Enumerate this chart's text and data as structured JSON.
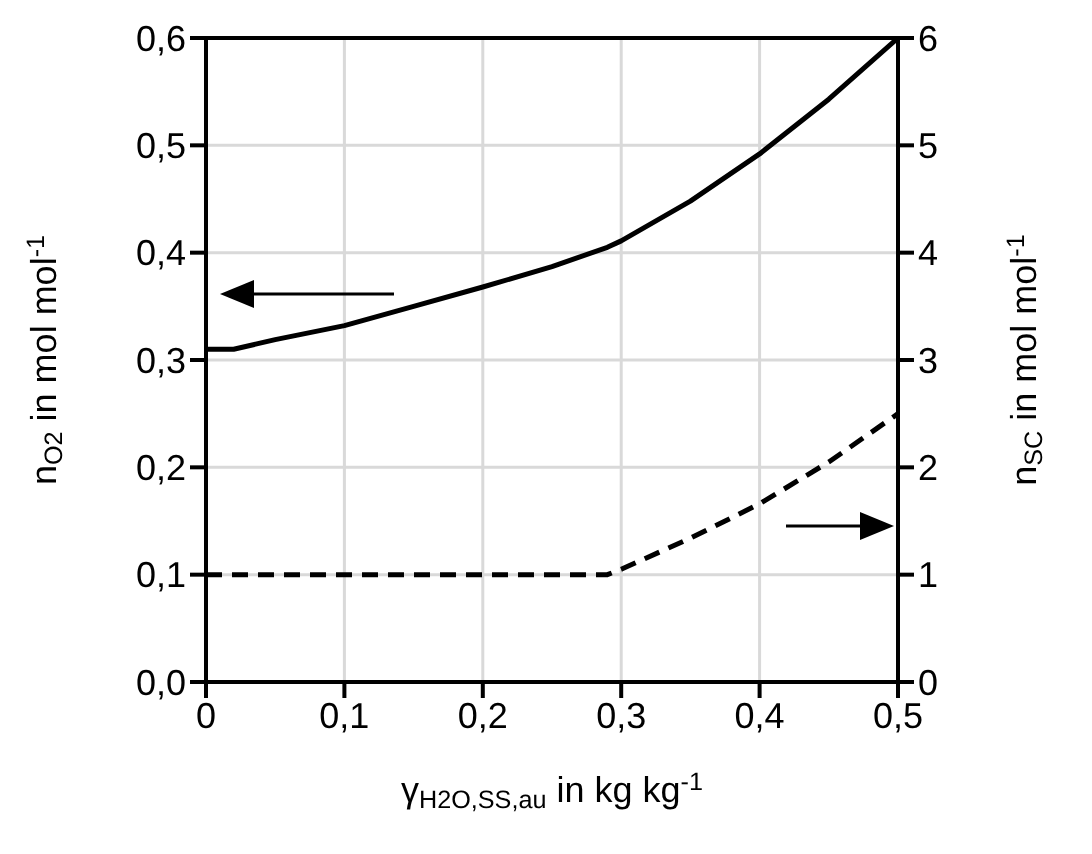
{
  "chart_data": {
    "type": "line",
    "xlabel": "γ$_{H2O,SS,au}$  in kg kg$^{-1}$",
    "ylabel": "n$_{O2}$ in mol mol$^{-1}$",
    "y2label": "n$_{SC}$ in mol mol$^{-1}$",
    "xlim": [
      0,
      0.5
    ],
    "xticks": [
      {
        "value": 0,
        "label": "0"
      },
      {
        "value": 0.1,
        "label": "0,1"
      },
      {
        "value": 0.2,
        "label": "0,2"
      },
      {
        "value": 0.3,
        "label": "0,3"
      },
      {
        "value": 0.4,
        "label": "0,4"
      },
      {
        "value": 0.5,
        "label": "0,5"
      }
    ],
    "ylim": [
      0,
      0.6
    ],
    "yticks": [
      {
        "value": 0,
        "label": "0,0"
      },
      {
        "value": 0.1,
        "label": "0,1"
      },
      {
        "value": 0.2,
        "label": "0,2"
      },
      {
        "value": 0.3,
        "label": "0,3"
      },
      {
        "value": 0.4,
        "label": "0,4"
      },
      {
        "value": 0.5,
        "label": "0,5"
      },
      {
        "value": 0.6,
        "label": "0,6"
      }
    ],
    "y2lim": [
      0,
      6
    ],
    "y2ticks": [
      0,
      1,
      2,
      3,
      4,
      5,
      6
    ],
    "grid": true,
    "marker": "none",
    "series": [
      {
        "color": "#000000",
        "line_style": "solid",
        "x": [
          0,
          0.02,
          0.05,
          0.1,
          0.15,
          0.2,
          0.25,
          0.29,
          0.3,
          0.35,
          0.4,
          0.45,
          0.5
        ],
        "values": [
          0.31,
          0.31,
          0.319,
          0.332,
          0.35,
          0.368,
          0.387,
          0.405,
          0.411,
          0.448,
          0.492,
          0.543,
          0.6
        ]
      },
      {
        "color": "#000000",
        "line_style": "dashed",
        "axis": "y2",
        "x": [
          0,
          0.1,
          0.2,
          0.29,
          0.3,
          0.35,
          0.4,
          0.45,
          0.5
        ],
        "values": [
          1,
          1,
          1,
          1,
          1.05,
          1.34,
          1.66,
          2.05,
          2.5
        ]
      }
    ]
  }
}
